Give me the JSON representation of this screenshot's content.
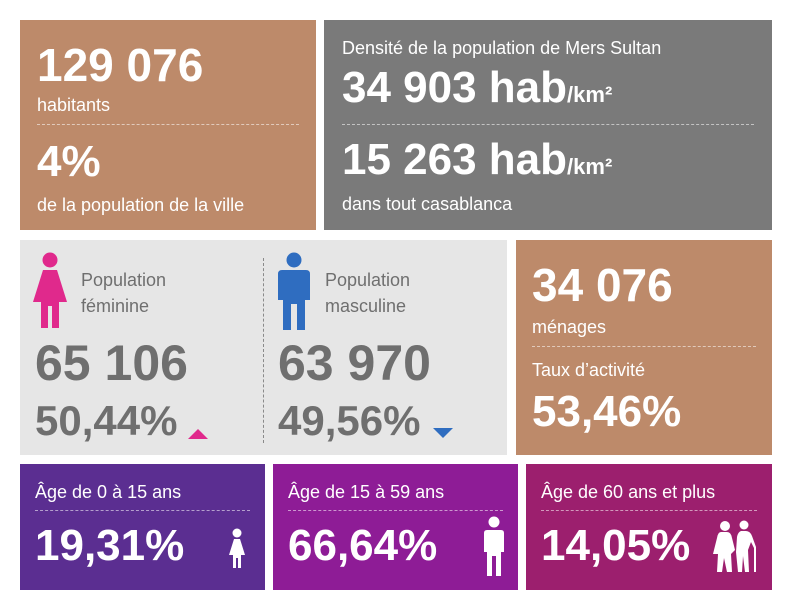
{
  "colors": {
    "tan": "#bd8a6a",
    "dark_gray": "#7a7a7a",
    "light_gray": "#e6e6e6",
    "female_pink": "#e0298c",
    "male_blue": "#2f6dc0",
    "violet": "#5b2e91",
    "purple": "#8e1c96",
    "magenta": "#9c1f6e"
  },
  "population": {
    "total_value": "129 076",
    "total_label": "habitants",
    "share_value": "4%",
    "share_label": "de la population de la ville"
  },
  "density": {
    "title": "Densité de la population de Mers Sultan",
    "district_value": "34 903 hab",
    "district_unit": "/km²",
    "city_value": "15 263 hab",
    "city_unit": "/km²",
    "city_label": "dans tout casablanca"
  },
  "gender": {
    "female": {
      "icon": "female-icon",
      "label_line1": "Population",
      "label_line2": "féminine",
      "count": "65 106",
      "percent": "50,44%",
      "trend": "up"
    },
    "male": {
      "icon": "male-icon",
      "label_line1": "Population",
      "label_line2": "masculine",
      "count": "63 970",
      "percent": "49,56%",
      "trend": "down"
    }
  },
  "households": {
    "value": "34 076",
    "label": "ménages",
    "activity_label": "Taux d’activité",
    "activity_value": "53,46%"
  },
  "age_groups": [
    {
      "label": "Âge de 0 à 15 ans",
      "percent": "19,31%",
      "icon": "child-icon"
    },
    {
      "label": "Âge de 15 à 59 ans",
      "percent": "66,64%",
      "icon": "adult-icon"
    },
    {
      "label": "Âge de 60 ans et plus",
      "percent": "14,05%",
      "icon": "elderly-couple-icon"
    }
  ]
}
